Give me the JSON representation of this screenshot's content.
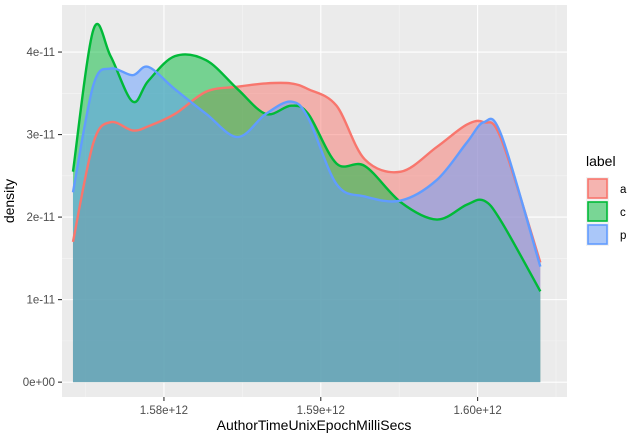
{
  "chart_data": {
    "type": "area",
    "xlabel": "AuthorTimeUnixEpochMilliSecs",
    "ylabel": "density",
    "x_ticks": [
      {
        "value": 1580000000000,
        "label": "1.58e+12"
      },
      {
        "value": 1590000000000,
        "label": "1.59e+12"
      },
      {
        "value": 1600000000000,
        "label": "1.60e+12"
      }
    ],
    "y_ticks": [
      {
        "value": 0,
        "label": "0e+00"
      },
      {
        "value": 1e-11,
        "label": "1e-11"
      },
      {
        "value": 2e-11,
        "label": "2e-11"
      },
      {
        "value": 3e-11,
        "label": "3e-11"
      },
      {
        "value": 4e-11,
        "label": "4e-11"
      }
    ],
    "xlim": [
      1573500000000,
      1605700000000
    ],
    "ylim": [
      -1.8e-12,
      4.57e-11
    ],
    "grid": true,
    "legend": {
      "title": "label",
      "placement": "right"
    },
    "x": [
      1574200000000,
      1575500000000,
      1576600000000,
      1578000000000,
      1579000000000,
      1580700000000,
      1582700000000,
      1584700000000,
      1586500000000,
      1588100000000,
      1589200000000,
      1591000000000,
      1592800000000,
      1595100000000,
      1597400000000,
      1599300000000,
      1600400000000,
      1601500000000,
      1604000000000
    ],
    "series": [
      {
        "name": "a",
        "color": "#F8766D",
        "values": [
          1.7e-11,
          2.9e-11,
          3.15e-11,
          3.05e-11,
          3.1e-11,
          3.25e-11,
          3.52e-11,
          3.58e-11,
          3.62e-11,
          3.62e-11,
          3.55e-11,
          3.35e-11,
          2.7e-11,
          2.55e-11,
          2.85e-11,
          3.12e-11,
          3.15e-11,
          2.95e-11,
          1.45e-11
        ]
      },
      {
        "name": "c",
        "color": "#00BA38",
        "values": [
          2.55e-11,
          4.27e-11,
          3.95e-11,
          3.4e-11,
          3.65e-11,
          3.95e-11,
          3.9e-11,
          3.55e-11,
          3.25e-11,
          3.35e-11,
          3.25e-11,
          2.65e-11,
          2.62e-11,
          2.18e-11,
          1.97e-11,
          2.15e-11,
          2.2e-11,
          1.95e-11,
          1.1e-11
        ]
      },
      {
        "name": "p",
        "color": "#619CFF",
        "values": [
          2.3e-11,
          3.6e-11,
          3.8e-11,
          3.72e-11,
          3.82e-11,
          3.55e-11,
          3.25e-11,
          2.97e-11,
          3.25e-11,
          3.4e-11,
          3.2e-11,
          2.4e-11,
          2.25e-11,
          2.2e-11,
          2.45e-11,
          2.9e-11,
          3.15e-11,
          3e-11,
          1.4e-11
        ]
      }
    ]
  }
}
